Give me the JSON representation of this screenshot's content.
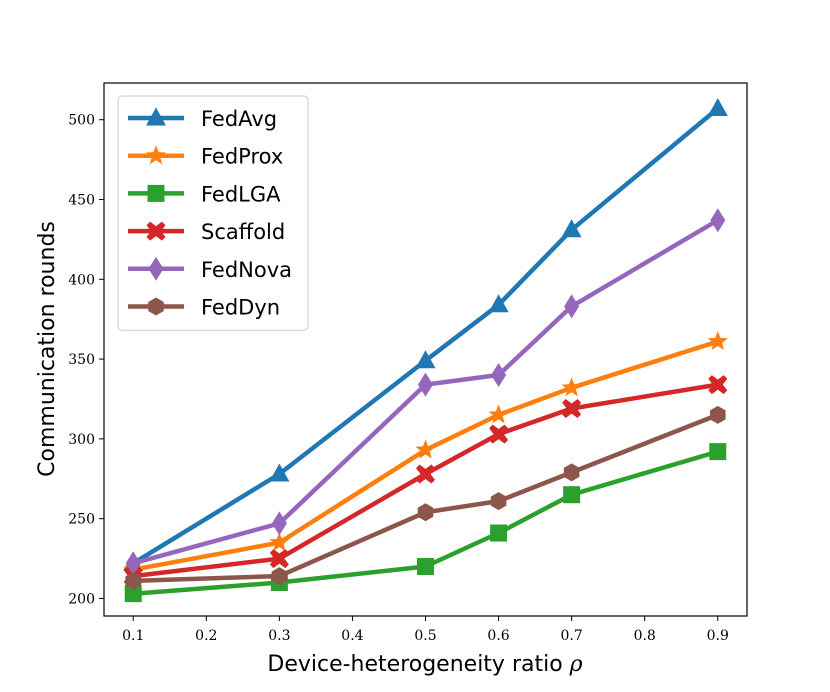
{
  "chart_data": {
    "type": "line",
    "xlabel": "Device-heterogeneity ratio",
    "xlabel_symbol": "ρ",
    "ylabel": "Communication rounds",
    "x": [
      0.1,
      0.3,
      0.5,
      0.6,
      0.7,
      0.9
    ],
    "xlim": [
      0.06,
      0.94
    ],
    "ylim": [
      189,
      523
    ],
    "xticks": [
      0.1,
      0.2,
      0.3,
      0.4,
      0.5,
      0.6,
      0.7,
      0.8,
      0.9
    ],
    "xtick_labels": [
      "0.1",
      "0.2",
      "0.3",
      "0.4",
      "0.5",
      "0.6",
      "0.7",
      "0.8",
      "0.9"
    ],
    "yticks": [
      200,
      250,
      300,
      350,
      400,
      450,
      500
    ],
    "ytick_labels": [
      "200",
      "250",
      "300",
      "350",
      "400",
      "450",
      "500"
    ],
    "grid": false,
    "legend_position": "top-left",
    "series": [
      {
        "name": "FedAvg",
        "color": "#1f77b4",
        "marker": "triangle",
        "values": [
          222,
          278,
          349,
          384,
          431,
          507
        ]
      },
      {
        "name": "FedProx",
        "color": "#ff7f0e",
        "marker": "star",
        "values": [
          218,
          235,
          293,
          315,
          332,
          361
        ]
      },
      {
        "name": "FedLGA",
        "color": "#2ca02c",
        "marker": "square",
        "values": [
          203,
          210,
          220,
          241,
          265,
          292
        ]
      },
      {
        "name": "Scaffold",
        "color": "#d62728",
        "marker": "x-cross",
        "values": [
          214,
          225,
          278,
          303,
          319,
          334
        ]
      },
      {
        "name": "FedNova",
        "color": "#9467bd",
        "marker": "diamond",
        "values": [
          222,
          247,
          334,
          340,
          383,
          437
        ]
      },
      {
        "name": "FedDyn",
        "color": "#8c564b",
        "marker": "hexagon",
        "values": [
          211,
          214,
          254,
          261,
          279,
          315
        ]
      }
    ]
  }
}
